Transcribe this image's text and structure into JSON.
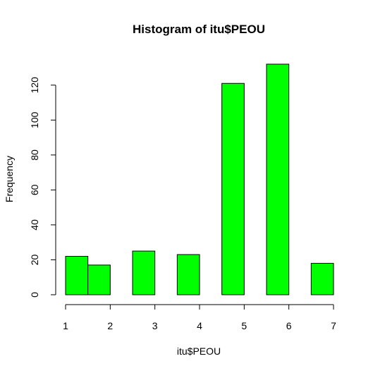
{
  "chart_data": {
    "type": "bar",
    "title": "Histogram of itu$PEOU",
    "xlabel": "itu$PEOU",
    "ylabel": "Frequency",
    "bar_color": "#00ff00",
    "bins": [
      {
        "start": 1.0,
        "end": 1.5,
        "count": 22
      },
      {
        "start": 1.5,
        "end": 2.0,
        "count": 17
      },
      {
        "start": 2.0,
        "end": 2.5,
        "count": 0
      },
      {
        "start": 2.5,
        "end": 3.0,
        "count": 25
      },
      {
        "start": 3.0,
        "end": 3.5,
        "count": 0
      },
      {
        "start": 3.5,
        "end": 4.0,
        "count": 23
      },
      {
        "start": 4.0,
        "end": 4.5,
        "count": 0
      },
      {
        "start": 4.5,
        "end": 5.0,
        "count": 121
      },
      {
        "start": 5.0,
        "end": 5.5,
        "count": 0
      },
      {
        "start": 5.5,
        "end": 6.0,
        "count": 132
      },
      {
        "start": 6.0,
        "end": 6.5,
        "count": 0
      },
      {
        "start": 6.5,
        "end": 7.0,
        "count": 18
      }
    ],
    "xlim": [
      1,
      7
    ],
    "ylim": [
      0,
      132
    ],
    "x_ticks": [
      "1",
      "2",
      "3",
      "4",
      "5",
      "6",
      "7"
    ],
    "y_ticks": [
      "0",
      "20",
      "40",
      "60",
      "80",
      "100",
      "120"
    ],
    "grid": false
  }
}
